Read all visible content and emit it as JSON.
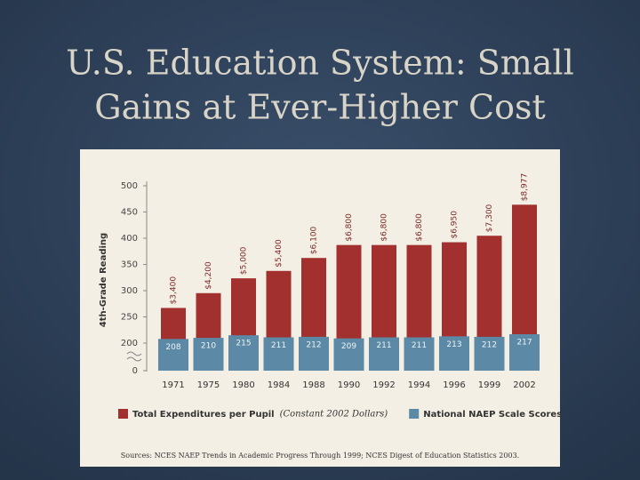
{
  "slide": {
    "title": [
      "U.S. Education System: Small",
      "Gains at Ever-Higher Cost"
    ]
  },
  "chart_data": {
    "type": "bar",
    "y_label": "4th-Grade Reading",
    "categories": [
      "1971",
      "1975",
      "1980",
      "1984",
      "1988",
      "1990",
      "1992",
      "1994",
      "1996",
      "1999",
      "2002"
    ],
    "series": [
      {
        "name": "Total Expenditures per Pupil",
        "name_note": "(Constant 2002 Dollars)",
        "color": "#a2302e",
        "axis": "y2",
        "values": [
          3400,
          4200,
          5000,
          5400,
          6100,
          6800,
          6800,
          6800,
          6950,
          7300,
          8977
        ],
        "value_labels": [
          "$3,400",
          "$4,200",
          "$5,000",
          "$5,400",
          "$6,100",
          "$6,800",
          "$6,800",
          "$6,800",
          "$6,950",
          "$7,300",
          "$8,977"
        ]
      },
      {
        "name": "National NAEP Scale Scores",
        "color": "#5c8aa6",
        "values": [
          208,
          210,
          215,
          211,
          212,
          209,
          211,
          211,
          213,
          212,
          217
        ]
      }
    ],
    "ylim": [
      0,
      500
    ],
    "yticks": [
      0,
      200,
      250,
      300,
      350,
      400,
      450,
      500
    ],
    "axis_break": [
      0,
      200
    ],
    "y2lim": [
      1500,
      10000
    ],
    "grid": false
  },
  "source": "Sources: NCES NAEP Trends in Academic Progress Through 1999; NCES Digest of Education Statistics 2003."
}
